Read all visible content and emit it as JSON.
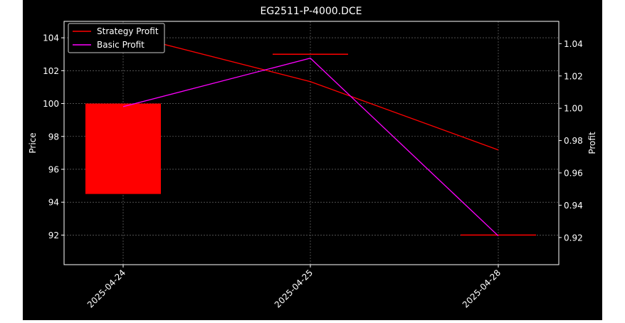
{
  "colors": {
    "figure_bg": "#000000",
    "axes_bg": "#000000",
    "axis_text": "#ffffff",
    "grid": "#7f7f7f",
    "candle_up": "#ff0000",
    "strategy_line": "#ff0000",
    "basic_line": "#ff00ff"
  },
  "chart_data": {
    "type": "line",
    "title": "EG2511-P-4000.DCE",
    "xlabel": "",
    "ylabel": "Price",
    "y2label": "Profit",
    "categories": [
      "2025-04-24",
      "2025-04-25",
      "2025-04-28"
    ],
    "ylim": [
      90.2,
      105.0
    ],
    "y2lim": [
      0.9032,
      1.0538
    ],
    "yticks": [
      92,
      94,
      96,
      98,
      100,
      102,
      104
    ],
    "y2ticks": [
      0.92,
      0.94,
      0.96,
      0.98,
      1.0,
      1.02,
      1.04
    ],
    "ytick_labels": [
      "92",
      "94",
      "96",
      "98",
      "100",
      "102",
      "104"
    ],
    "y2tick_labels": [
      "0.92",
      "0.94",
      "0.96",
      "0.98",
      "1.00",
      "1.02",
      "1.04"
    ],
    "grid": true,
    "legend_position": "top-left",
    "candles": [
      {
        "date": "2025-04-24",
        "open": 94.5,
        "close": 100.0,
        "high": 100.0,
        "low": 94.5
      },
      {
        "date": "2025-04-25",
        "open": 103.0,
        "close": 103.0,
        "high": 103.0,
        "low": 103.0
      },
      {
        "date": "2025-04-28",
        "open": 92.0,
        "close": 92.0,
        "high": 92.0,
        "low": 92.0
      }
    ],
    "series": [
      {
        "name": "Strategy Profit",
        "axis": "right",
        "values": [
          1.046,
          1.0165,
          0.9742
        ]
      },
      {
        "name": "Basic Profit",
        "axis": "right",
        "values": [
          1.001,
          1.031,
          0.921
        ]
      }
    ]
  }
}
